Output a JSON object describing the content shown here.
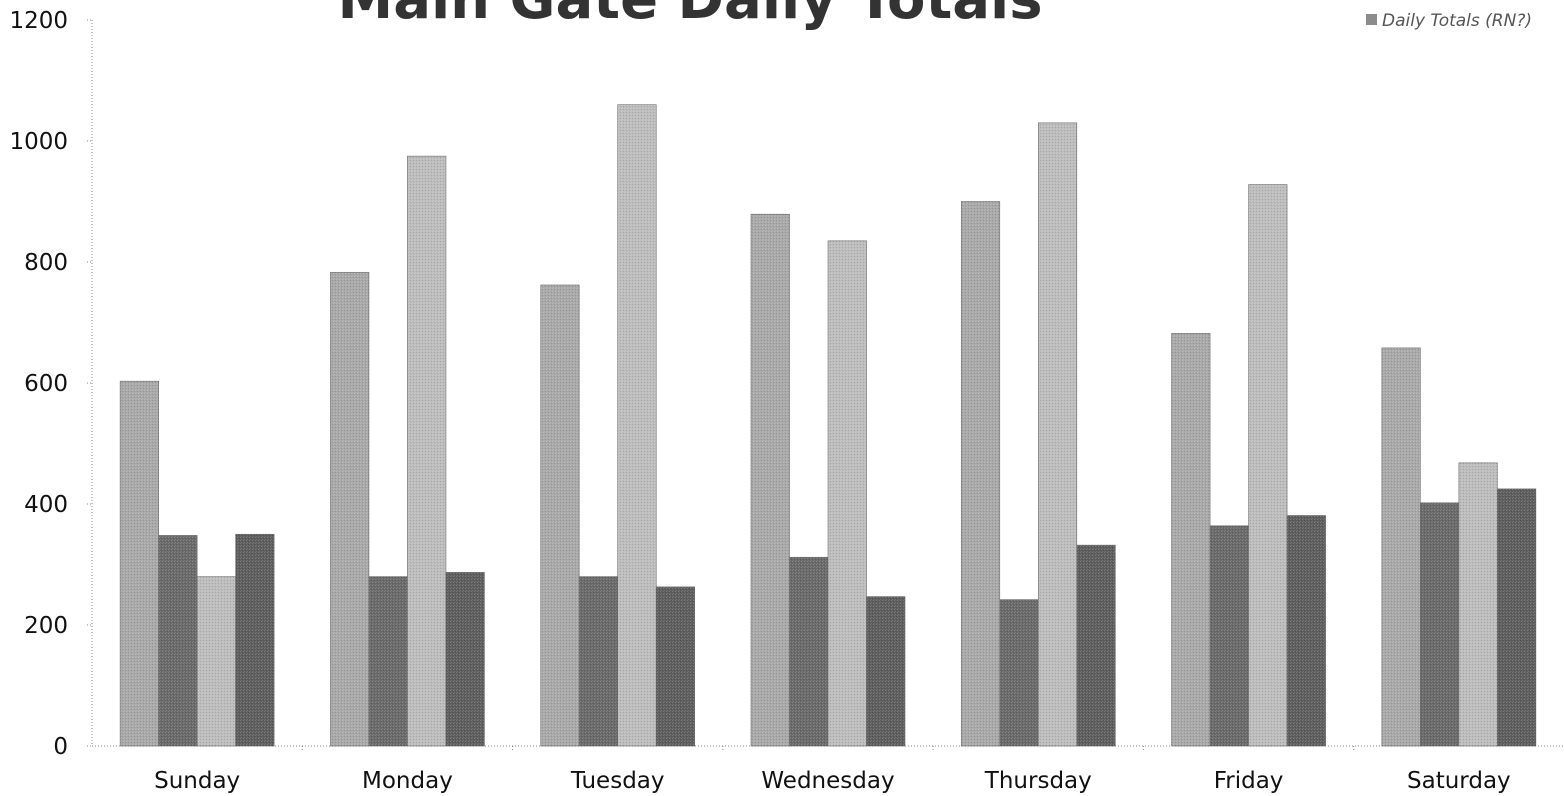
{
  "chart_data": {
    "type": "bar",
    "title": "Main Gate Daily Totals",
    "legend_label": "Daily Totals (RN?) ",
    "legend_placement": "top-right",
    "xlabel": "",
    "ylabel": "",
    "ylim": [
      0,
      1200
    ],
    "yticks": [
      "0",
      "200",
      "400",
      "600",
      "800",
      "1000",
      "1200"
    ],
    "grid": false,
    "categories": [
      "Sunday",
      "Monday",
      "Tuesday",
      "Wednesday",
      "Thursday",
      "Friday",
      "Saturday"
    ],
    "series": [
      {
        "values": [
          603,
          783,
          762,
          879,
          900,
          682,
          658
        ],
        "color": "#a9a9a9"
      },
      {
        "values": [
          348,
          280,
          280,
          312,
          242,
          364,
          402
        ],
        "color": "#6a6a6a"
      },
      {
        "values": [
          280,
          975,
          1060,
          835,
          1030,
          928,
          468
        ],
        "color": "#bdbdbd"
      },
      {
        "values": [
          350,
          287,
          263,
          247,
          332,
          381,
          425
        ],
        "color": "#5e5e5e"
      }
    ]
  }
}
